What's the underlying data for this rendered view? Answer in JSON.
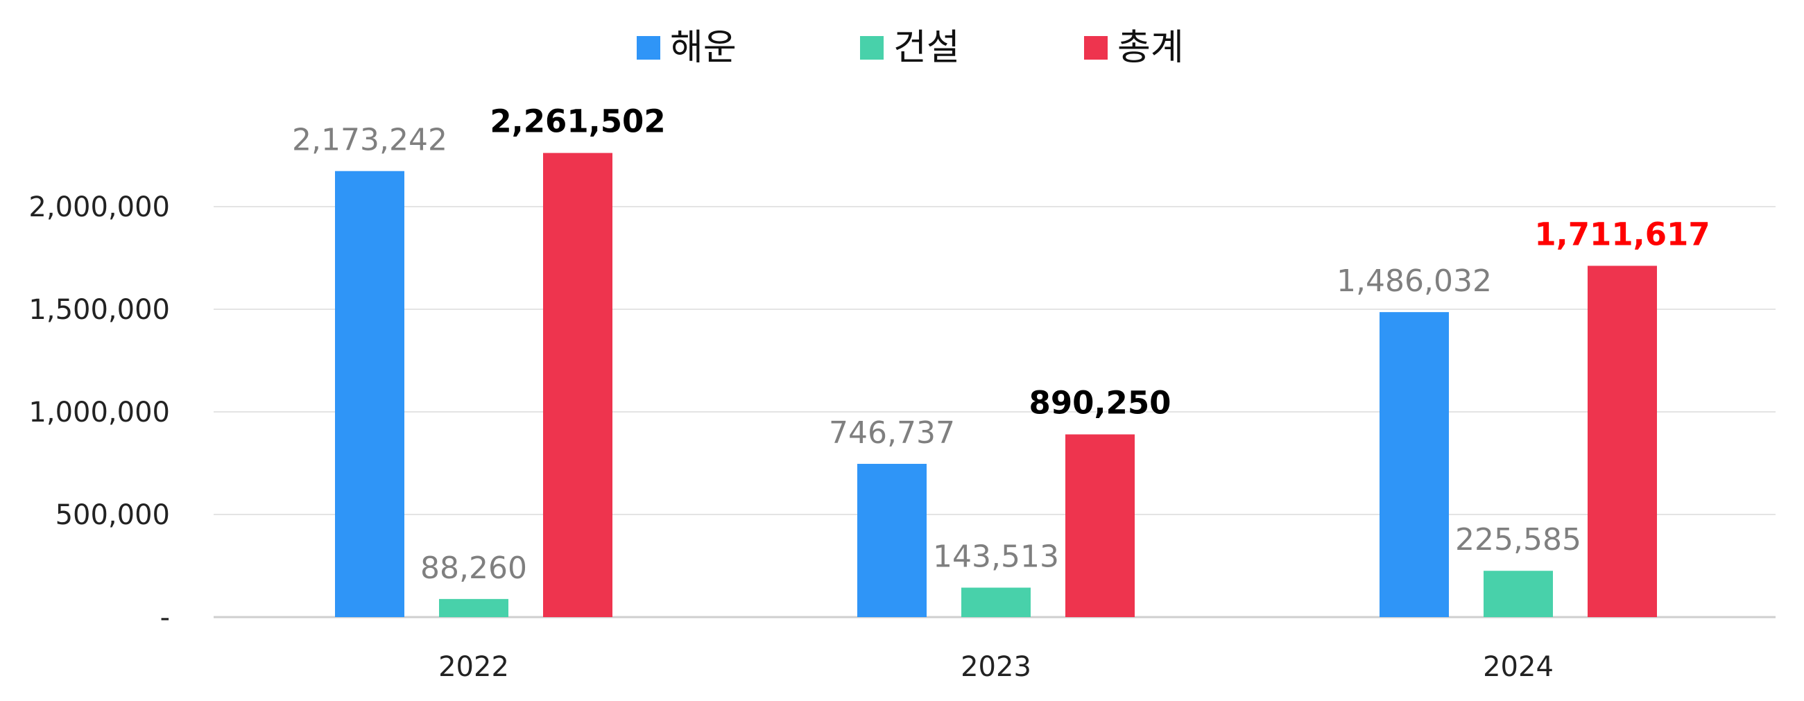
{
  "chart_data": {
    "type": "bar",
    "categories": [
      "2022",
      "2023",
      "2024"
    ],
    "series": [
      {
        "name": "해운",
        "color": "#2f95f7",
        "values": [
          2173242,
          746737,
          1486032
        ],
        "labels": [
          "2,173,242",
          "746,737",
          "1,486,032"
        ]
      },
      {
        "name": "건설",
        "color": "#48d1aa",
        "values": [
          88260,
          143513,
          225585
        ],
        "labels": [
          "88,260",
          "143,513",
          "225,585"
        ]
      },
      {
        "name": "총계",
        "color": "#ee344e",
        "values": [
          2261502,
          890250,
          1711617
        ],
        "labels": [
          "2,261,502",
          "890,250",
          "1,711,617"
        ]
      }
    ],
    "ylim": [
      0,
      2500000
    ],
    "yticks": [
      0,
      500000,
      1000000,
      1500000,
      2000000
    ],
    "ytick_labels": [
      "-",
      "500,000",
      "1,000,000",
      "1,500,000",
      "2,000,000"
    ],
    "grid": true,
    "legend_position": "top-center",
    "highlight_color": "#ff0000",
    "highlight_label": {
      "series": 2,
      "category": 2
    }
  }
}
